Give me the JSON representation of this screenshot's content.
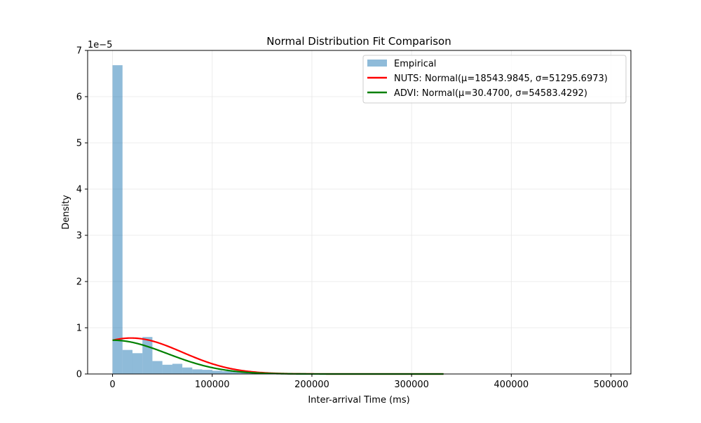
{
  "chart_data": {
    "type": "bar",
    "title": "Normal Distribution Fit Comparison",
    "xlabel": "Inter-arrival Time (ms)",
    "ylabel": "Density",
    "y_offset_label": "1e−5",
    "xlim": [
      -25000,
      520000
    ],
    "ylim": [
      0,
      7e-05
    ],
    "x_ticks": [
      0,
      100000,
      200000,
      300000,
      400000,
      500000
    ],
    "x_tick_labels": [
      "0",
      "100000",
      "200000",
      "300000",
      "400000",
      "500000"
    ],
    "y_ticks": [
      0,
      1e-05,
      2e-05,
      3e-05,
      4e-05,
      5e-05,
      6e-05,
      7e-05
    ],
    "y_tick_labels": [
      "0",
      "1",
      "2",
      "3",
      "4",
      "5",
      "6",
      "7"
    ],
    "grid": true,
    "legend_position": "top-right",
    "histogram": {
      "name": "Empirical",
      "color": "#1f77b4",
      "opacity": 0.5,
      "bin_width": 10000,
      "bin_starts": [
        0,
        10000,
        20000,
        30000,
        40000,
        50000,
        60000,
        70000,
        80000,
        90000,
        100000,
        110000,
        120000,
        130000,
        140000,
        150000,
        160000,
        170000,
        180000,
        190000,
        200000,
        210000,
        220000,
        230000,
        240000,
        250000,
        260000,
        270000,
        280000,
        290000,
        300000,
        310000,
        320000,
        330000,
        340000,
        350000,
        360000
      ],
      "values": [
        6.68e-05,
        5.2e-06,
        4.5e-06,
        8e-06,
        2.8e-06,
        2e-06,
        2.2e-06,
        1.4e-06,
        1e-06,
        9e-07,
        7e-07,
        6e-07,
        5e-07,
        4e-07,
        3e-07,
        2.5e-07,
        2e-07,
        1.8e-07,
        1.5e-07,
        1.2e-07,
        1e-07,
        1e-07,
        8e-08,
        8e-08,
        7e-08,
        6e-08,
        6e-08,
        5e-08,
        5e-08,
        4e-08,
        4e-08,
        4e-08,
        3e-08,
        3e-08,
        3e-08,
        3e-08,
        2e-08
      ]
    },
    "curves": [
      {
        "name": "NUTS: Normal(μ=18543.9845, σ=51295.6973)",
        "color": "#ff0000",
        "mu": 18543.9845,
        "sigma": 51295.6973,
        "x_range": [
          0,
          332000
        ]
      },
      {
        "name": "ADVI: Normal(μ=30.4700, σ=54583.4292)",
        "color": "#008000",
        "mu": 30.47,
        "sigma": 54583.4292,
        "x_range": [
          0,
          332000
        ]
      }
    ]
  }
}
